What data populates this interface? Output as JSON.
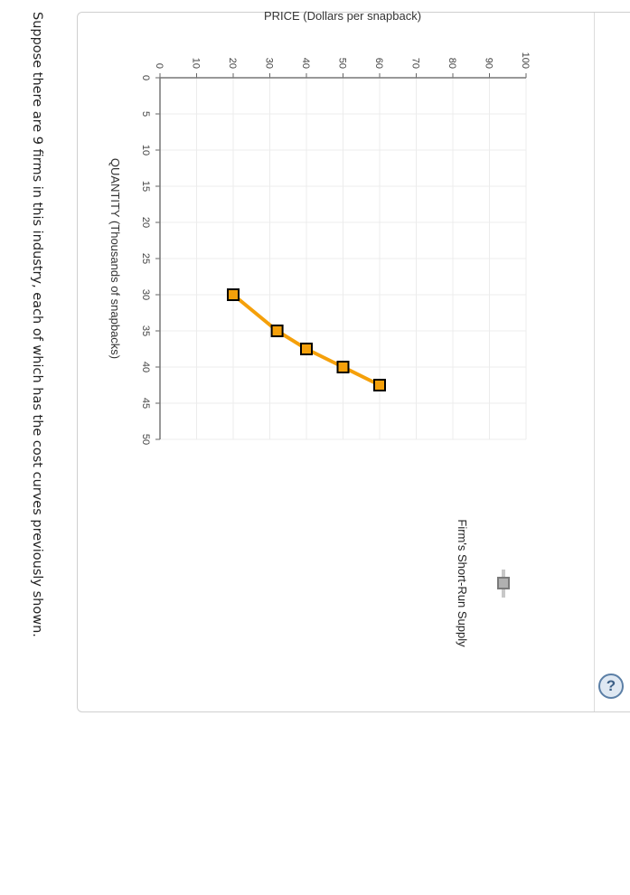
{
  "panel": {
    "help_icon": "question-mark-icon",
    "help_label": "?"
  },
  "chart_data": {
    "type": "line",
    "orientation": "rotated: quantity on vertical axis in unrotated view is displayed; page rendered rotated 90deg clockwise",
    "title": "",
    "xlabel": "QUANTITY (Thousands of snapbacks)",
    "ylabel": "PRICE (Dollars per snapback)",
    "xlim": [
      0,
      50
    ],
    "ylim": [
      0,
      100
    ],
    "x_ticks": [
      0,
      5,
      10,
      15,
      20,
      25,
      30,
      35,
      40,
      45,
      50
    ],
    "y_ticks": [
      0,
      10,
      20,
      30,
      40,
      50,
      60,
      70,
      80,
      90,
      100
    ],
    "grid": true,
    "series": [
      {
        "name": "Firm's Short-Run Supply",
        "color": "#f5a00a",
        "marker": "square",
        "marker_edge": "#000000",
        "points": [
          {
            "quantity": 30,
            "price": 20
          },
          {
            "quantity": 35,
            "price": 32
          },
          {
            "quantity": 37.5,
            "price": 40
          },
          {
            "quantity": 40,
            "price": 50
          },
          {
            "quantity": 42.5,
            "price": 60
          }
        ]
      }
    ],
    "legend": {
      "position": "right",
      "entries": [
        {
          "label": "Firm's Short-Run Supply",
          "marker_color": "#a9a9a9"
        }
      ]
    }
  },
  "prompt": {
    "text": "Suppose there are 9 firms in this industry, each of which has the cost curves previously shown."
  }
}
